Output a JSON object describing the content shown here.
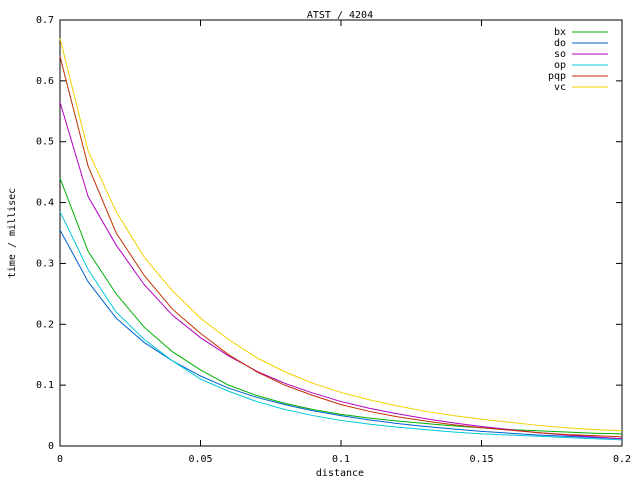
{
  "chart_data": {
    "type": "line",
    "title": "ATST / 4204",
    "x_label": "distance",
    "y_label": "time / millisec",
    "x": [
      0,
      0.01,
      0.02,
      0.03,
      0.04,
      0.05,
      0.06,
      0.07,
      0.08,
      0.09,
      0.1,
      0.11,
      0.12,
      0.13,
      0.14,
      0.15,
      0.16,
      0.17,
      0.18,
      0.19,
      0.2
    ],
    "series": [
      {
        "name": "bx",
        "color": "#00b000",
        "values": [
          0.44,
          0.32,
          0.25,
          0.195,
          0.155,
          0.125,
          0.1,
          0.083,
          0.07,
          0.06,
          0.052,
          0.046,
          0.041,
          0.037,
          0.033,
          0.03,
          0.027,
          0.025,
          0.023,
          0.021,
          0.02
        ]
      },
      {
        "name": "do",
        "color": "#0060d0",
        "values": [
          0.355,
          0.27,
          0.21,
          0.17,
          0.14,
          0.115,
          0.095,
          0.08,
          0.068,
          0.058,
          0.05,
          0.043,
          0.037,
          0.032,
          0.028,
          0.024,
          0.021,
          0.018,
          0.016,
          0.014,
          0.012
        ]
      },
      {
        "name": "so",
        "color": "#b000c0",
        "values": [
          0.565,
          0.41,
          0.33,
          0.265,
          0.215,
          0.178,
          0.148,
          0.123,
          0.103,
          0.087,
          0.073,
          0.062,
          0.053,
          0.045,
          0.038,
          0.032,
          0.027,
          0.022,
          0.018,
          0.015,
          0.012
        ]
      },
      {
        "name": "op",
        "color": "#00c8d8",
        "values": [
          0.385,
          0.29,
          0.22,
          0.175,
          0.14,
          0.11,
          0.09,
          0.073,
          0.06,
          0.05,
          0.042,
          0.036,
          0.031,
          0.027,
          0.023,
          0.02,
          0.018,
          0.016,
          0.014,
          0.012,
          0.01
        ]
      },
      {
        "name": "pqp",
        "color": "#c03000",
        "values": [
          0.64,
          0.46,
          0.35,
          0.28,
          0.225,
          0.185,
          0.15,
          0.122,
          0.1,
          0.083,
          0.068,
          0.057,
          0.048,
          0.041,
          0.035,
          0.03,
          0.026,
          0.022,
          0.019,
          0.017,
          0.015
        ]
      },
      {
        "name": "vc",
        "color": "#f0d000",
        "values": [
          0.67,
          0.485,
          0.385,
          0.31,
          0.255,
          0.21,
          0.175,
          0.145,
          0.122,
          0.103,
          0.088,
          0.076,
          0.066,
          0.057,
          0.05,
          0.044,
          0.039,
          0.034,
          0.03,
          0.027,
          0.025
        ]
      }
    ],
    "xlim": [
      0,
      0.2
    ],
    "xticks": [
      0,
      0.05,
      0.1,
      0.15,
      0.2
    ],
    "ylim": [
      0,
      0.7
    ],
    "yticks": [
      0,
      0.1,
      0.2,
      0.3,
      0.4,
      0.5,
      0.6,
      0.7
    ],
    "grid": false,
    "legend": "top-right"
  }
}
